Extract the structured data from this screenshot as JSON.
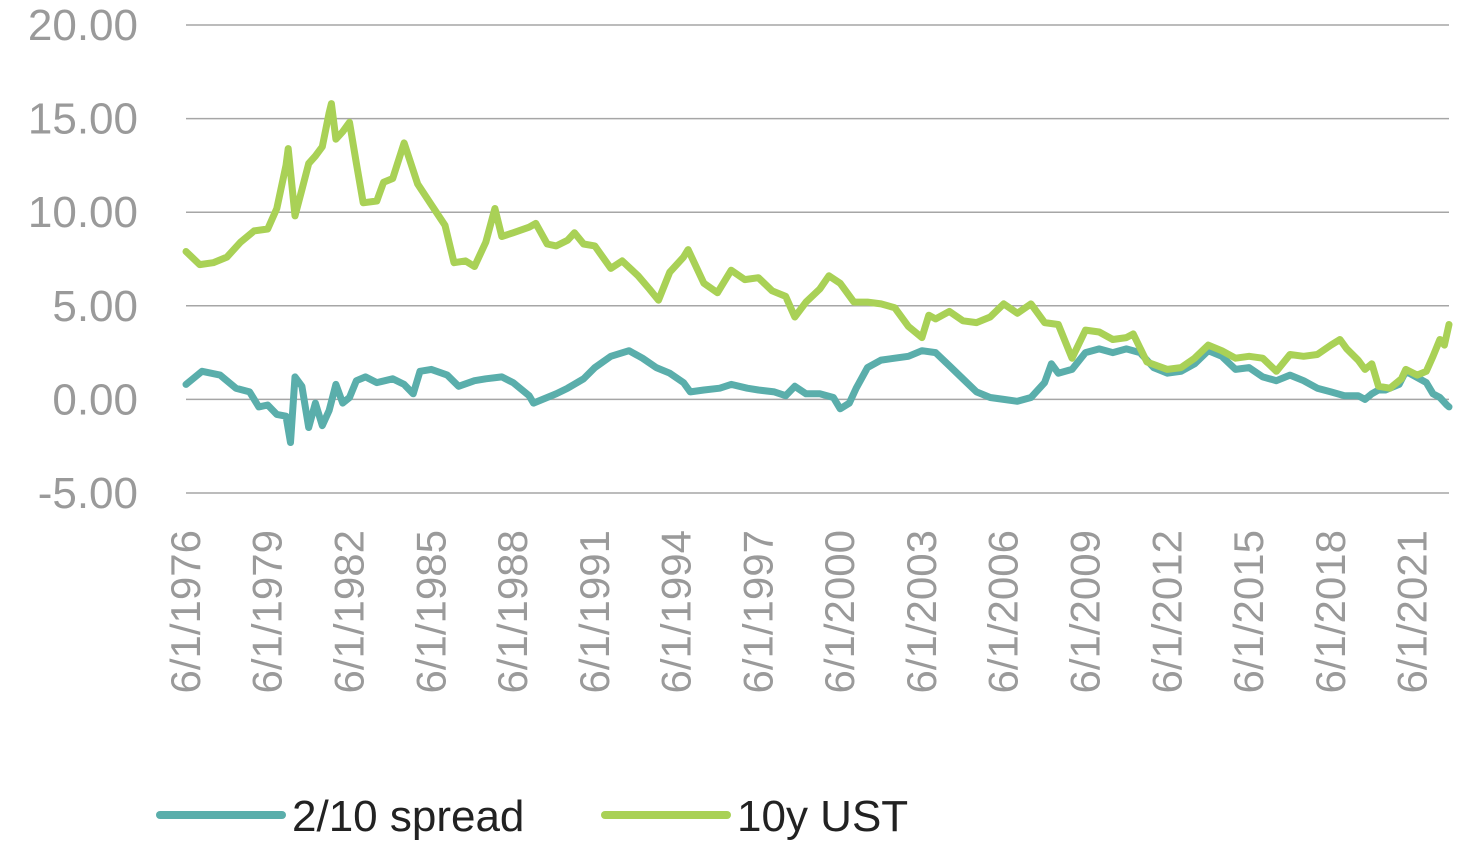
{
  "chart_data": {
    "type": "line",
    "title": "",
    "xlabel": "",
    "ylabel": "",
    "ylim": [
      -5,
      20
    ],
    "yticks": [
      20,
      15,
      10,
      5,
      0,
      -5
    ],
    "ytick_labels": [
      "20.00",
      "15.00",
      "10.00",
      "5.00",
      "0.00",
      "-5.00"
    ],
    "xlim": [
      "1976-06-01",
      "2022-10-01"
    ],
    "xtick_labels": [
      "6/1/1976",
      "6/1/1979",
      "6/1/1982",
      "6/1/1985",
      "6/1/1988",
      "6/1/1991",
      "6/1/1994",
      "6/1/1997",
      "6/1/2000",
      "6/1/2003",
      "6/1/2006",
      "6/1/2009",
      "6/1/2012",
      "6/1/2015",
      "6/1/2018",
      "6/1/2021"
    ],
    "grid": true,
    "legend_position": "bottom",
    "series": [
      {
        "name": "2/10 spread",
        "color": "#5aaeab",
        "points": [
          [
            "1976-06-01",
            0.8
          ],
          [
            "1977-01-01",
            1.5
          ],
          [
            "1977-09-01",
            1.3
          ],
          [
            "1978-04-01",
            0.6
          ],
          [
            "1978-10-01",
            0.4
          ],
          [
            "1979-02-01",
            -0.4
          ],
          [
            "1979-06-01",
            -0.3
          ],
          [
            "1979-10-01",
            -0.8
          ],
          [
            "1980-02-01",
            -0.9
          ],
          [
            "1980-04-01",
            -2.3
          ],
          [
            "1980-06-01",
            1.2
          ],
          [
            "1980-09-01",
            0.7
          ],
          [
            "1980-12-01",
            -1.5
          ],
          [
            "1981-03-01",
            -0.2
          ],
          [
            "1981-06-01",
            -1.4
          ],
          [
            "1981-09-01",
            -0.6
          ],
          [
            "1981-12-01",
            0.8
          ],
          [
            "1982-03-01",
            -0.2
          ],
          [
            "1982-06-01",
            0.1
          ],
          [
            "1982-09-01",
            1.0
          ],
          [
            "1983-01-01",
            1.2
          ],
          [
            "1983-06-01",
            0.9
          ],
          [
            "1984-01-01",
            1.1
          ],
          [
            "1984-06-01",
            0.8
          ],
          [
            "1984-10-01",
            0.3
          ],
          [
            "1985-01-01",
            1.5
          ],
          [
            "1985-06-01",
            1.6
          ],
          [
            "1986-01-01",
            1.3
          ],
          [
            "1986-06-01",
            0.7
          ],
          [
            "1987-01-01",
            1.0
          ],
          [
            "1987-06-01",
            1.1
          ],
          [
            "1988-01-01",
            1.2
          ],
          [
            "1988-06-01",
            0.9
          ],
          [
            "1989-01-01",
            0.2
          ],
          [
            "1989-03-01",
            -0.2
          ],
          [
            "1989-07-01",
            0.0
          ],
          [
            "1990-01-01",
            0.3
          ],
          [
            "1990-06-01",
            0.6
          ],
          [
            "1991-01-01",
            1.1
          ],
          [
            "1991-06-01",
            1.7
          ],
          [
            "1992-01-01",
            2.3
          ],
          [
            "1992-09-01",
            2.6
          ],
          [
            "1993-03-01",
            2.2
          ],
          [
            "1993-09-01",
            1.7
          ],
          [
            "1994-03-01",
            1.4
          ],
          [
            "1994-09-01",
            0.9
          ],
          [
            "1994-12-01",
            0.4
          ],
          [
            "1995-06-01",
            0.5
          ],
          [
            "1996-01-01",
            0.6
          ],
          [
            "1996-06-01",
            0.8
          ],
          [
            "1997-01-01",
            0.6
          ],
          [
            "1997-06-01",
            0.5
          ],
          [
            "1998-01-01",
            0.4
          ],
          [
            "1998-06-01",
            0.2
          ],
          [
            "1998-10-01",
            0.7
          ],
          [
            "1999-03-01",
            0.3
          ],
          [
            "1999-09-01",
            0.3
          ],
          [
            "2000-03-01",
            0.1
          ],
          [
            "2000-06-01",
            -0.5
          ],
          [
            "2000-10-01",
            -0.2
          ],
          [
            "2001-01-01",
            0.6
          ],
          [
            "2001-06-01",
            1.7
          ],
          [
            "2001-12-01",
            2.1
          ],
          [
            "2002-06-01",
            2.2
          ],
          [
            "2002-12-01",
            2.3
          ],
          [
            "2003-06-01",
            2.6
          ],
          [
            "2003-12-01",
            2.5
          ],
          [
            "2004-06-01",
            1.8
          ],
          [
            "2004-12-01",
            1.1
          ],
          [
            "2005-06-01",
            0.4
          ],
          [
            "2005-12-01",
            0.1
          ],
          [
            "2006-06-01",
            0.0
          ],
          [
            "2006-12-01",
            -0.1
          ],
          [
            "2007-06-01",
            0.1
          ],
          [
            "2007-12-01",
            0.9
          ],
          [
            "2008-03-01",
            1.9
          ],
          [
            "2008-06-01",
            1.4
          ],
          [
            "2008-12-01",
            1.6
          ],
          [
            "2009-06-01",
            2.5
          ],
          [
            "2009-12-01",
            2.7
          ],
          [
            "2010-06-01",
            2.5
          ],
          [
            "2010-12-01",
            2.7
          ],
          [
            "2011-06-01",
            2.5
          ],
          [
            "2011-12-01",
            1.7
          ],
          [
            "2012-06-01",
            1.4
          ],
          [
            "2012-12-01",
            1.5
          ],
          [
            "2013-06-01",
            1.9
          ],
          [
            "2013-12-01",
            2.6
          ],
          [
            "2014-06-01",
            2.3
          ],
          [
            "2014-12-01",
            1.6
          ],
          [
            "2015-06-01",
            1.7
          ],
          [
            "2015-12-01",
            1.2
          ],
          [
            "2016-06-01",
            1.0
          ],
          [
            "2016-12-01",
            1.3
          ],
          [
            "2017-06-01",
            1.0
          ],
          [
            "2017-12-01",
            0.6
          ],
          [
            "2018-06-01",
            0.4
          ],
          [
            "2018-12-01",
            0.2
          ],
          [
            "2019-06-01",
            0.2
          ],
          [
            "2019-09-01",
            0.0
          ],
          [
            "2019-12-01",
            0.3
          ],
          [
            "2020-03-01",
            0.5
          ],
          [
            "2020-06-01",
            0.5
          ],
          [
            "2020-12-01",
            0.8
          ],
          [
            "2021-03-01",
            1.5
          ],
          [
            "2021-06-01",
            1.3
          ],
          [
            "2021-09-01",
            1.1
          ],
          [
            "2021-12-01",
            0.9
          ],
          [
            "2022-03-01",
            0.3
          ],
          [
            "2022-06-01",
            0.1
          ],
          [
            "2022-09-01",
            -0.3
          ],
          [
            "2022-10-01",
            -0.4
          ]
        ]
      },
      {
        "name": "10y UST",
        "color": "#a9d156",
        "points": [
          [
            "1976-06-01",
            7.9
          ],
          [
            "1976-12-01",
            7.2
          ],
          [
            "1977-06-01",
            7.3
          ],
          [
            "1977-12-01",
            7.6
          ],
          [
            "1978-06-01",
            8.4
          ],
          [
            "1978-12-01",
            9.0
          ],
          [
            "1979-06-01",
            9.1
          ],
          [
            "1979-10-01",
            10.2
          ],
          [
            "1980-02-01",
            12.5
          ],
          [
            "1980-03-01",
            13.4
          ],
          [
            "1980-06-01",
            9.8
          ],
          [
            "1980-09-01",
            11.2
          ],
          [
            "1980-12-01",
            12.6
          ],
          [
            "1981-03-01",
            13.0
          ],
          [
            "1981-06-01",
            13.5
          ],
          [
            "1981-09-01",
            15.3
          ],
          [
            "1981-10-01",
            15.8
          ],
          [
            "1981-12-01",
            13.9
          ],
          [
            "1982-03-01",
            14.3
          ],
          [
            "1982-06-01",
            14.8
          ],
          [
            "1982-09-01",
            12.6
          ],
          [
            "1982-12-01",
            10.5
          ],
          [
            "1983-06-01",
            10.6
          ],
          [
            "1983-09-01",
            11.6
          ],
          [
            "1984-01-01",
            11.8
          ],
          [
            "1984-06-01",
            13.7
          ],
          [
            "1984-12-01",
            11.5
          ],
          [
            "1985-06-01",
            10.4
          ],
          [
            "1985-12-01",
            9.3
          ],
          [
            "1986-04-01",
            7.3
          ],
          [
            "1986-09-01",
            7.4
          ],
          [
            "1987-01-01",
            7.1
          ],
          [
            "1987-06-01",
            8.4
          ],
          [
            "1987-10-01",
            10.2
          ],
          [
            "1988-01-01",
            8.7
          ],
          [
            "1988-06-01",
            8.9
          ],
          [
            "1989-01-01",
            9.2
          ],
          [
            "1989-04-01",
            9.4
          ],
          [
            "1989-09-01",
            8.3
          ],
          [
            "1990-01-01",
            8.2
          ],
          [
            "1990-06-01",
            8.5
          ],
          [
            "1990-09-01",
            8.9
          ],
          [
            "1991-01-01",
            8.3
          ],
          [
            "1991-06-01",
            8.2
          ],
          [
            "1992-01-01",
            7.0
          ],
          [
            "1992-06-01",
            7.4
          ],
          [
            "1993-01-01",
            6.6
          ],
          [
            "1993-06-01",
            5.9
          ],
          [
            "1993-10-01",
            5.3
          ],
          [
            "1994-03-01",
            6.8
          ],
          [
            "1994-09-01",
            7.6
          ],
          [
            "1994-11-01",
            8.0
          ],
          [
            "1995-06-01",
            6.2
          ],
          [
            "1995-12-01",
            5.7
          ],
          [
            "1996-06-01",
            6.9
          ],
          [
            "1996-12-01",
            6.4
          ],
          [
            "1997-06-01",
            6.5
          ],
          [
            "1997-12-01",
            5.8
          ],
          [
            "1998-06-01",
            5.5
          ],
          [
            "1998-10-01",
            4.4
          ],
          [
            "1999-03-01",
            5.2
          ],
          [
            "1999-09-01",
            5.9
          ],
          [
            "2000-01-01",
            6.6
          ],
          [
            "2000-06-01",
            6.2
          ],
          [
            "2000-12-01",
            5.2
          ],
          [
            "2001-06-01",
            5.2
          ],
          [
            "2001-12-01",
            5.1
          ],
          [
            "2002-06-01",
            4.9
          ],
          [
            "2002-12-01",
            3.9
          ],
          [
            "2003-06-01",
            3.3
          ],
          [
            "2003-09-01",
            4.5
          ],
          [
            "2003-12-01",
            4.3
          ],
          [
            "2004-06-01",
            4.7
          ],
          [
            "2004-12-01",
            4.2
          ],
          [
            "2005-06-01",
            4.1
          ],
          [
            "2005-12-01",
            4.4
          ],
          [
            "2006-06-01",
            5.1
          ],
          [
            "2006-12-01",
            4.6
          ],
          [
            "2007-06-01",
            5.1
          ],
          [
            "2007-12-01",
            4.1
          ],
          [
            "2008-06-01",
            4.0
          ],
          [
            "2008-12-01",
            2.2
          ],
          [
            "2009-06-01",
            3.7
          ],
          [
            "2009-12-01",
            3.6
          ],
          [
            "2010-06-01",
            3.2
          ],
          [
            "2010-12-01",
            3.3
          ],
          [
            "2011-03-01",
            3.5
          ],
          [
            "2011-09-01",
            2.0
          ],
          [
            "2012-06-01",
            1.6
          ],
          [
            "2012-12-01",
            1.7
          ],
          [
            "2013-06-01",
            2.2
          ],
          [
            "2013-12-01",
            2.9
          ],
          [
            "2014-06-01",
            2.6
          ],
          [
            "2014-12-01",
            2.2
          ],
          [
            "2015-06-01",
            2.3
          ],
          [
            "2015-12-01",
            2.2
          ],
          [
            "2016-06-01",
            1.5
          ],
          [
            "2016-12-01",
            2.4
          ],
          [
            "2017-06-01",
            2.3
          ],
          [
            "2017-12-01",
            2.4
          ],
          [
            "2018-06-01",
            2.9
          ],
          [
            "2018-10-01",
            3.2
          ],
          [
            "2019-01-01",
            2.7
          ],
          [
            "2019-06-01",
            2.1
          ],
          [
            "2019-09-01",
            1.6
          ],
          [
            "2019-12-01",
            1.9
          ],
          [
            "2020-03-01",
            0.7
          ],
          [
            "2020-08-01",
            0.6
          ],
          [
            "2021-01-01",
            1.1
          ],
          [
            "2021-03-01",
            1.6
          ],
          [
            "2021-08-01",
            1.3
          ],
          [
            "2021-12-01",
            1.5
          ],
          [
            "2022-03-01",
            2.3
          ],
          [
            "2022-06-01",
            3.2
          ],
          [
            "2022-08-01",
            2.9
          ],
          [
            "2022-10-01",
            4.0
          ]
        ]
      }
    ]
  }
}
